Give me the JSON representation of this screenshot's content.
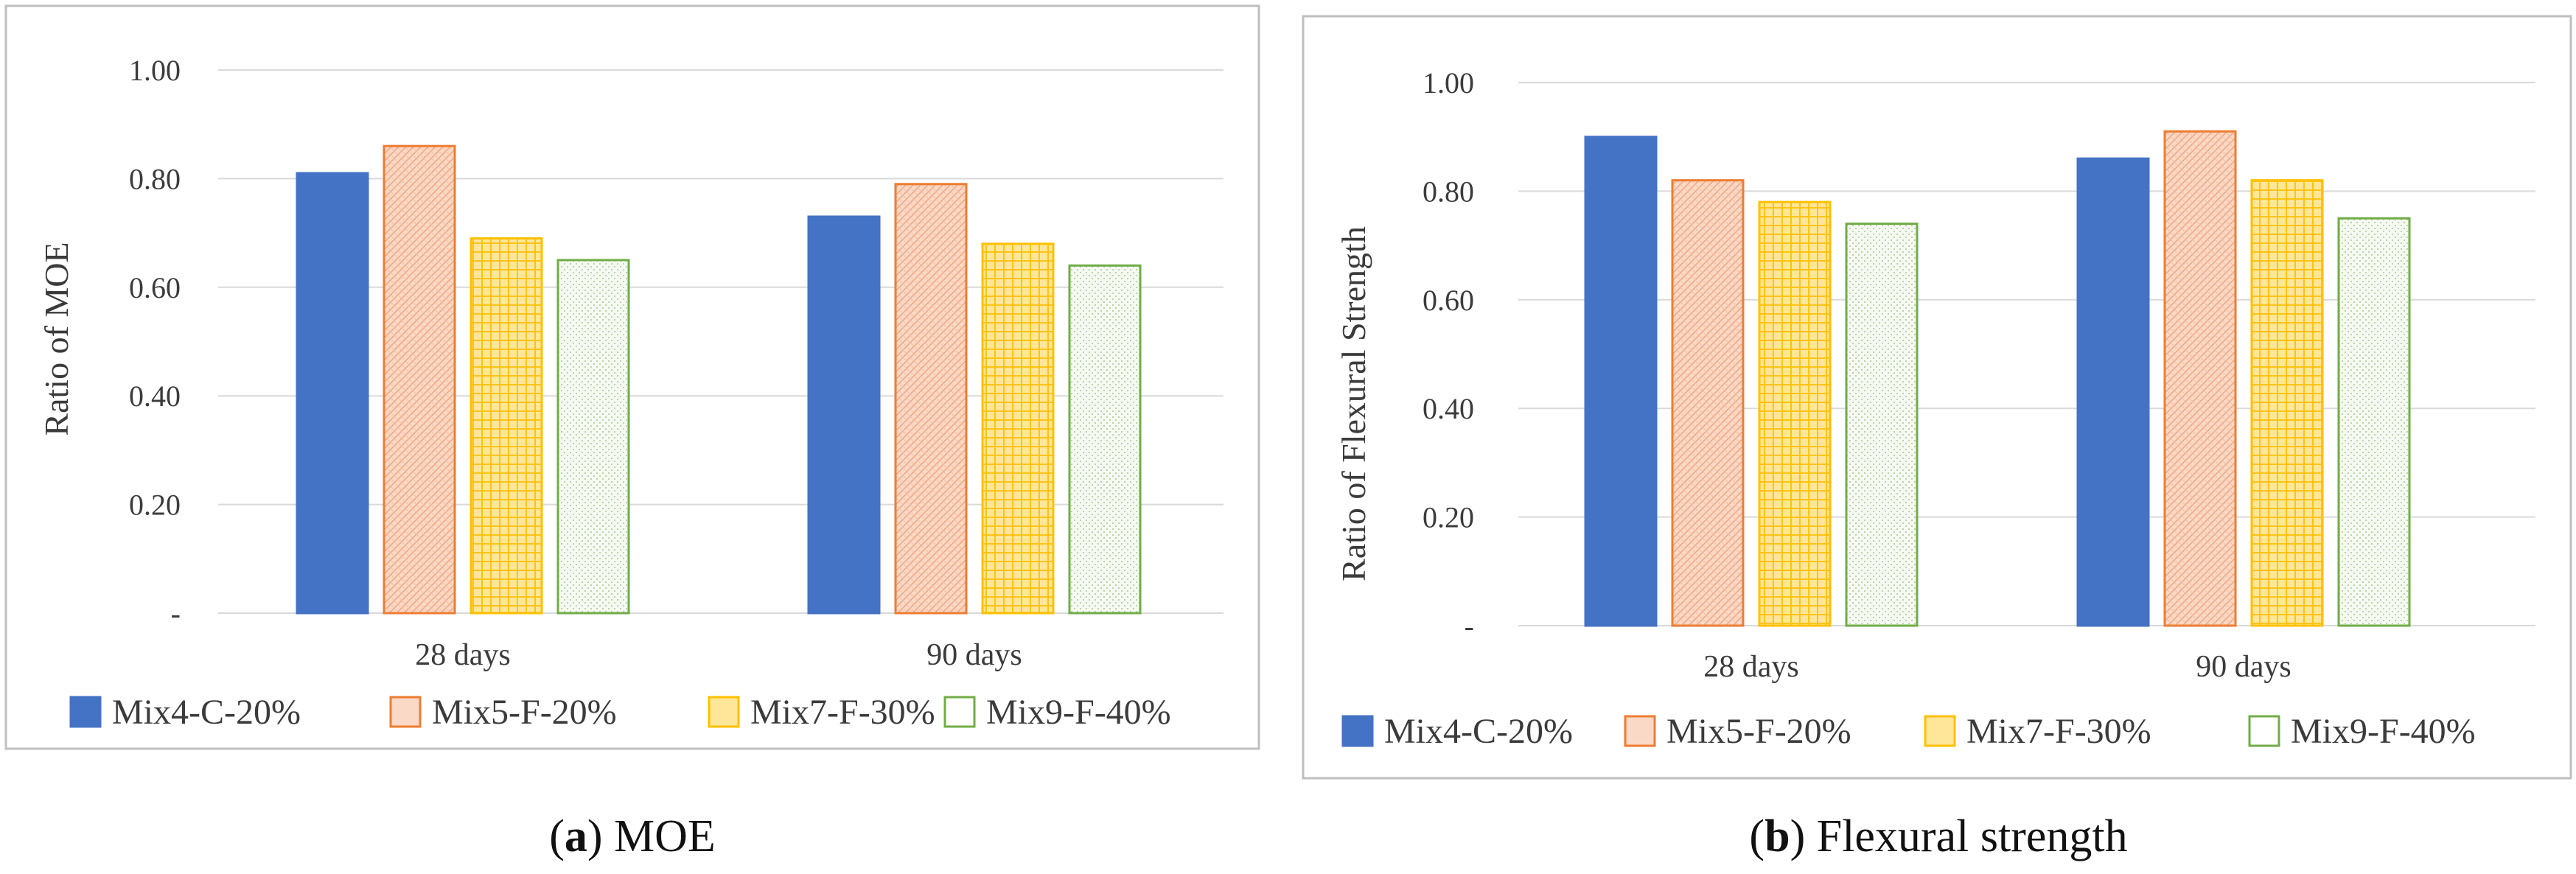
{
  "figure": {
    "panels": [
      {
        "caption_letter": "a",
        "caption_text": ") MOE",
        "caption_open": "("
      },
      {
        "caption_letter": "b",
        "caption_text": ") Flexural strength",
        "caption_open": "("
      }
    ]
  },
  "colors": {
    "mix4": "#4472c4",
    "mix5_fill": "#fbd9c7",
    "mix5_edge": "#ed7d31",
    "mix7_fill": "#ffe699",
    "mix7_edge": "#ffc000",
    "mix9_fill": "#f4f8ef",
    "mix9_edge": "#70ad47",
    "grid": "#d9d9d9",
    "frame": "#bfbfbf"
  },
  "chart_data": [
    {
      "type": "bar",
      "title": "",
      "ylabel": "Ratio of MOE",
      "xlabel": "",
      "categories": [
        "28 days",
        "90 days"
      ],
      "ylim": [
        0,
        1
      ],
      "yticks": [
        0,
        0.2,
        0.4,
        0.6,
        0.8,
        1.0
      ],
      "ytick_labels": [
        "-",
        "0.20",
        "0.40",
        "0.60",
        "0.80",
        "1.00"
      ],
      "grid": true,
      "legend_position": "bottom",
      "series": [
        {
          "name": "Mix4-C-20%",
          "values": [
            0.81,
            0.73
          ]
        },
        {
          "name": "Mix5-F-20%",
          "values": [
            0.86,
            0.79
          ]
        },
        {
          "name": "Mix7-F-30%",
          "values": [
            0.69,
            0.68
          ]
        },
        {
          "name": "Mix9-F-40%",
          "values": [
            0.65,
            0.64
          ]
        }
      ]
    },
    {
      "type": "bar",
      "title": "",
      "ylabel": "Ratio of Flexural  Strength",
      "xlabel": "",
      "categories": [
        "28 days",
        "90 days"
      ],
      "ylim": [
        0,
        1
      ],
      "yticks": [
        0,
        0.2,
        0.4,
        0.6,
        0.8,
        1.0
      ],
      "ytick_labels": [
        "-",
        "0.20",
        "0.40",
        "0.60",
        "0.80",
        "1.00"
      ],
      "grid": true,
      "legend_position": "bottom",
      "series": [
        {
          "name": "Mix4-C-20%",
          "values": [
            0.9,
            0.86
          ]
        },
        {
          "name": "Mix5-F-20%",
          "values": [
            0.82,
            0.91
          ]
        },
        {
          "name": "Mix7-F-30%",
          "values": [
            0.78,
            0.82
          ]
        },
        {
          "name": "Mix9-F-40%",
          "values": [
            0.74,
            0.75
          ]
        }
      ]
    }
  ]
}
